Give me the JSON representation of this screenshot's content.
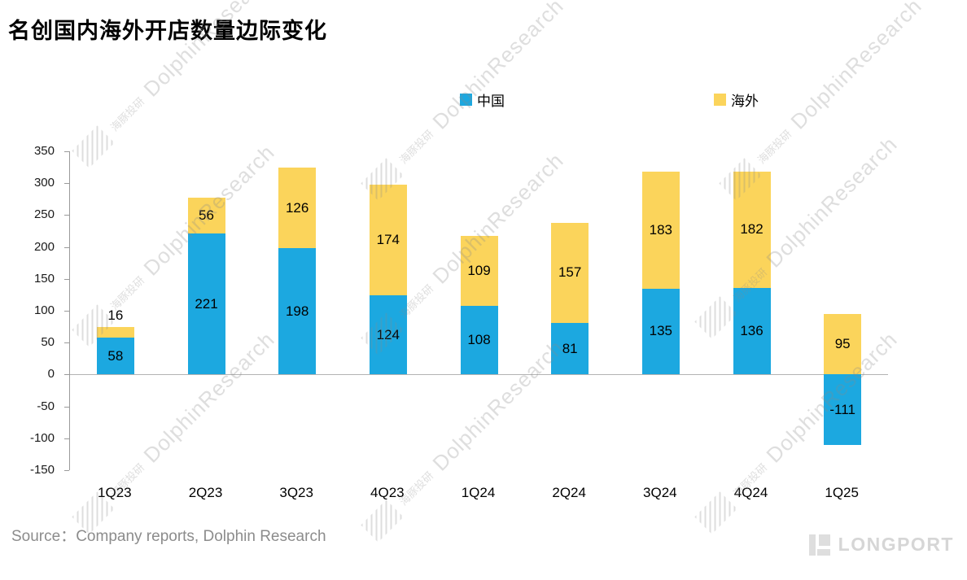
{
  "title": "名创国内海外开店数量边际变化",
  "chart_data": {
    "type": "bar",
    "stacked": true,
    "title": "名创国内海外开店数量边际变化",
    "categories": [
      "1Q23",
      "2Q23",
      "3Q23",
      "4Q23",
      "1Q24",
      "2Q24",
      "3Q24",
      "4Q24",
      "1Q25"
    ],
    "series": [
      {
        "name": "中国",
        "color": "#1CA8E0",
        "values": [
          58,
          221,
          198,
          124,
          108,
          81,
          135,
          136,
          -111
        ]
      },
      {
        "name": "海外",
        "color": "#FBD45B",
        "values": [
          16,
          56,
          126,
          174,
          109,
          157,
          183,
          182,
          95
        ]
      }
    ],
    "ylim": [
      -150,
      350
    ],
    "ytick_step": 50,
    "grid": false,
    "legend_position": "top"
  },
  "source": "Source：Company reports, Dolphin Research",
  "watermark": {
    "zh": "海豚投研",
    "en": "DolphinResearch"
  },
  "logo": {
    "text": "LONGPORT"
  }
}
